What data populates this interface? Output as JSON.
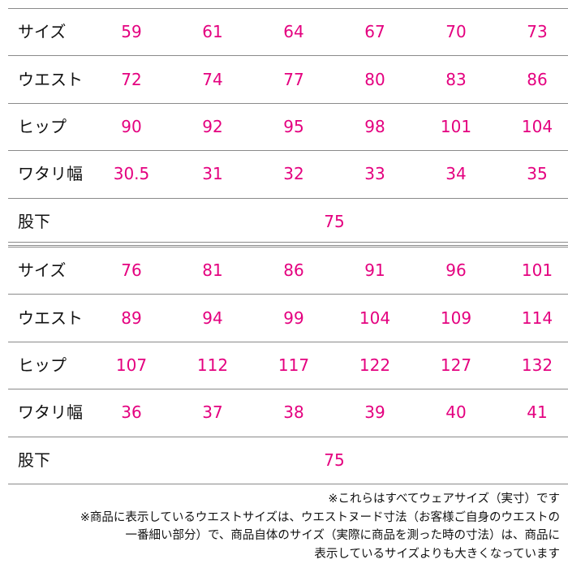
{
  "tables": [
    {
      "rows": [
        {
          "label": "サイズ",
          "values": [
            59,
            61,
            64,
            67,
            70,
            73
          ]
        },
        {
          "label": "ウエスト",
          "values": [
            72,
            74,
            77,
            80,
            83,
            86
          ]
        },
        {
          "label": "ヒップ",
          "values": [
            90,
            92,
            95,
            98,
            101,
            104
          ]
        },
        {
          "label": "ワタリ幅",
          "values": [
            30.5,
            31,
            32,
            33,
            34,
            35
          ]
        }
      ],
      "inseam": {
        "label": "股下",
        "value": 75
      }
    },
    {
      "rows": [
        {
          "label": "サイズ",
          "values": [
            76,
            81,
            86,
            91,
            96,
            101
          ]
        },
        {
          "label": "ウエスト",
          "values": [
            89,
            94,
            99,
            104,
            109,
            114
          ]
        },
        {
          "label": "ヒップ",
          "values": [
            107,
            112,
            117,
            122,
            127,
            132
          ]
        },
        {
          "label": "ワタリ幅",
          "values": [
            36,
            37,
            38,
            39,
            40,
            41
          ]
        }
      ],
      "inseam": {
        "label": "股下",
        "value": 75
      }
    }
  ],
  "notes": [
    "※これらはすべてウェアサイズ（実寸）です",
    "※商品に表示しているウエストサイズは、ウエストヌード寸法（お客様ご自身のウエストの",
    "一番細い部分）で、商品自体のサイズ（実際に商品を測った時の寸法）は、商品に",
    "表示しているサイズよりも大きくなっています"
  ]
}
